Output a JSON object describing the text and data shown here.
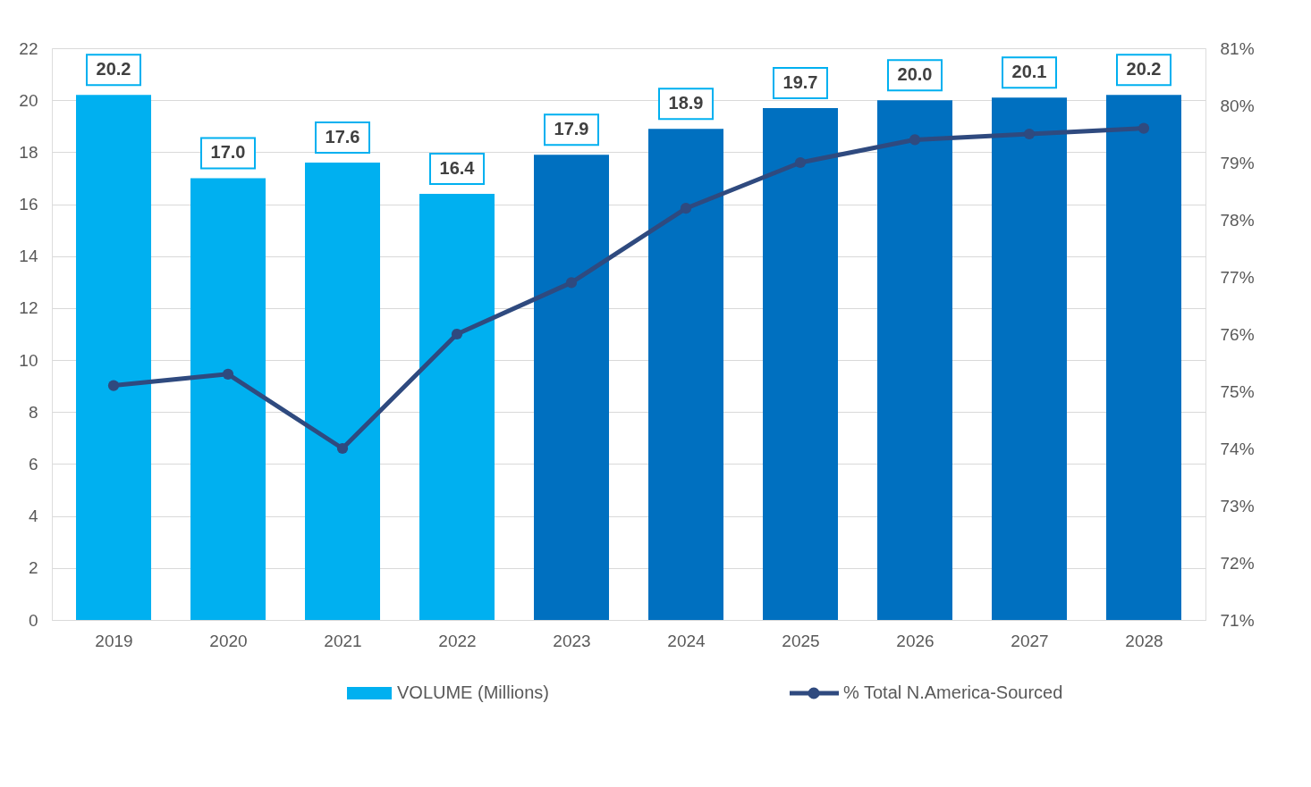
{
  "chart_data": {
    "type": "bar",
    "categories": [
      "2019",
      "2020",
      "2021",
      "2022",
      "2023",
      "2024",
      "2025",
      "2026",
      "2027",
      "2028"
    ],
    "series": [
      {
        "name": "VOLUME (Millions)",
        "color": "#00b0f0",
        "colors": [
          "#00b0f0",
          "#00b0f0",
          "#00b0f0",
          "#00b0f0",
          "#0070c0",
          "#0070c0",
          "#0070c0",
          "#0070c0",
          "#0070c0",
          "#0070c0"
        ],
        "values": [
          20.2,
          17.0,
          17.6,
          16.4,
          17.9,
          18.9,
          19.7,
          20.0,
          20.1,
          20.2
        ],
        "value_labels": [
          "20.2",
          "17.0",
          "17.6",
          "16.4",
          "17.9",
          "18.9",
          "19.7",
          "20.0",
          "20.1",
          "20.2"
        ]
      },
      {
        "name": "% Total N.America-Sourced",
        "type": "line",
        "axis": "y2",
        "color": "#2f4a7f",
        "marker": "circle",
        "values": [
          75.1,
          75.3,
          74.0,
          76.0,
          76.9,
          78.2,
          79.0,
          79.4,
          79.5,
          79.6
        ]
      }
    ],
    "ylim": [
      0,
      22
    ],
    "yticks": [
      0,
      2,
      4,
      6,
      8,
      10,
      12,
      14,
      16,
      18,
      20,
      22
    ],
    "y2lim": [
      71,
      81
    ],
    "y2ticks": [
      {
        "value": 71,
        "label": "71%"
      },
      {
        "value": 72,
        "label": "72%"
      },
      {
        "value": 73,
        "label": "73%"
      },
      {
        "value": 74,
        "label": "74%"
      },
      {
        "value": 75,
        "label": "75%"
      },
      {
        "value": 76,
        "label": "76%"
      },
      {
        "value": 77,
        "label": "77%"
      },
      {
        "value": 78,
        "label": "78%"
      },
      {
        "value": 79,
        "label": "79%"
      },
      {
        "value": 80,
        "label": "80%"
      },
      {
        "value": 81,
        "label": "81%"
      }
    ],
    "grid": "y",
    "legend": "bottom"
  }
}
